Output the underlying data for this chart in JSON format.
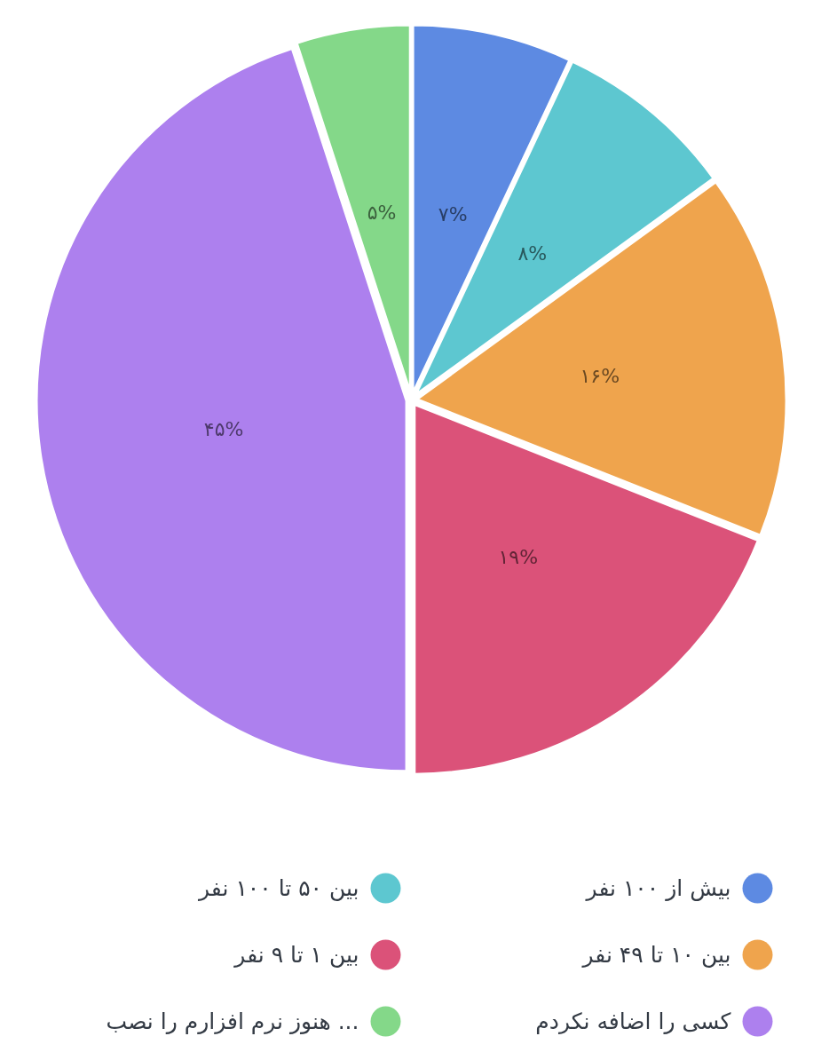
{
  "chart_data": {
    "type": "pie",
    "categories": [
      "بیش از ۱۰۰ نفر",
      "بین ۵۰ تا ۱۰۰ نفر",
      "بین ۱۰ تا ۴۹ نفر",
      "بین ۱ تا ۹ نفر",
      "کسی را اضافه نکردم",
      "هنوز نرم افزارم را نصب ..."
    ],
    "values": [
      7,
      8,
      16,
      19,
      45,
      5
    ],
    "colors": [
      "#5d8ae2",
      "#5dc7d0",
      "#efa44d",
      "#db5279",
      "#ad80ee",
      "#84d889"
    ],
    "value_labels": [
      "۷%",
      "۸%",
      "۱۶%",
      "۱۹%",
      "۴۵%",
      "۵%"
    ],
    "legend": "bottom"
  }
}
